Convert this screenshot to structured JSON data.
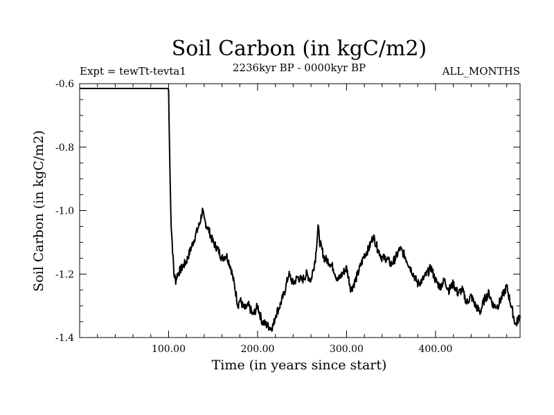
{
  "chart_data": {
    "type": "line",
    "title": "Soil Carbon (in kgC/m2)",
    "subtitle_left": "Expt = tewTt-tevta1",
    "subtitle_center": "2236kyr BP - 0000kyr BP",
    "subtitle_right": "ALL_MONTHS",
    "xlabel": "Time (in years since start)",
    "ylabel": "Soil Carbon (in kgC/m2)",
    "xlim": [
      0,
      495
    ],
    "ylim": [
      -1.4,
      -0.6
    ],
    "x_ticks": [
      100,
      200,
      300,
      400
    ],
    "x_tick_labels": [
      "100.00",
      "200.00",
      "300.00",
      "400.00"
    ],
    "y_ticks": [
      -1.4,
      -1.2,
      -1.0,
      -0.8,
      -0.6
    ],
    "y_tick_labels": [
      "-1.4",
      "-1.2",
      "-1.0",
      "-0.8",
      "-0.6"
    ],
    "series": [
      {
        "name": "Soil Carbon",
        "x": [
          0,
          99,
          100,
          101,
          102,
          103,
          104,
          105,
          106,
          108,
          110,
          115,
          120,
          125,
          130,
          135,
          138,
          140,
          145,
          150,
          155,
          160,
          165,
          170,
          175,
          178,
          180,
          185,
          190,
          195,
          200,
          205,
          210,
          215,
          218,
          220,
          225,
          230,
          235,
          240,
          245,
          250,
          255,
          260,
          265,
          268,
          270,
          275,
          280,
          285,
          290,
          295,
          300,
          305,
          310,
          315,
          320,
          325,
          330,
          335,
          340,
          345,
          350,
          355,
          360,
          365,
          370,
          375,
          380,
          385,
          390,
          395,
          400,
          405,
          410,
          415,
          420,
          425,
          430,
          435,
          440,
          445,
          450,
          455,
          460,
          465,
          470,
          475,
          480,
          485,
          490,
          495
        ],
        "values": [
          -0.615,
          -0.615,
          -0.62,
          -0.8,
          -0.95,
          -1.05,
          -1.1,
          -1.15,
          -1.2,
          -1.22,
          -1.2,
          -1.18,
          -1.16,
          -1.12,
          -1.08,
          -1.04,
          -1.0,
          -1.03,
          -1.06,
          -1.1,
          -1.12,
          -1.15,
          -1.14,
          -1.18,
          -1.25,
          -1.3,
          -1.28,
          -1.31,
          -1.3,
          -1.33,
          -1.3,
          -1.35,
          -1.36,
          -1.37,
          -1.36,
          -1.33,
          -1.3,
          -1.26,
          -1.2,
          -1.23,
          -1.21,
          -1.22,
          -1.2,
          -1.22,
          -1.15,
          -1.05,
          -1.1,
          -1.15,
          -1.16,
          -1.18,
          -1.22,
          -1.2,
          -1.18,
          -1.25,
          -1.22,
          -1.18,
          -1.14,
          -1.12,
          -1.08,
          -1.12,
          -1.15,
          -1.15,
          -1.17,
          -1.15,
          -1.12,
          -1.14,
          -1.17,
          -1.2,
          -1.23,
          -1.22,
          -1.2,
          -1.18,
          -1.22,
          -1.24,
          -1.22,
          -1.25,
          -1.23,
          -1.26,
          -1.25,
          -1.29,
          -1.27,
          -1.3,
          -1.32,
          -1.28,
          -1.26,
          -1.3,
          -1.3,
          -1.27,
          -1.24,
          -1.3,
          -1.36,
          -1.33
        ]
      }
    ]
  }
}
